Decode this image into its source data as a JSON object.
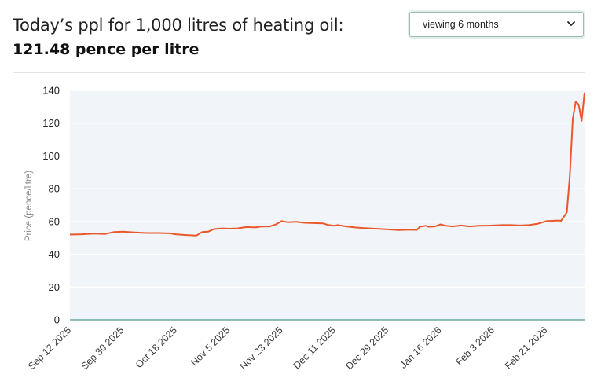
{
  "header": {
    "title_line1": "Today’s ppl for 1,000 litres of heating oil:",
    "title_line2": "121.48 pence per litre"
  },
  "period_select": {
    "selected": "viewing 6 months",
    "icon": "chevron-down-icon"
  },
  "colors": {
    "line": "#e9582a",
    "plot_bg": "#f1f4f8",
    "baseline": "#4a9a8c"
  },
  "chart_data": {
    "type": "line",
    "title": "",
    "xlabel": "",
    "ylabel": "Price (pence/litre)",
    "ylim": [
      0,
      140
    ],
    "yticks": [
      0,
      20,
      40,
      60,
      80,
      100,
      120,
      140
    ],
    "grid": true,
    "legend": "none",
    "x_tick_labels": [
      "Sep 12 2025",
      "Sep 30 2025",
      "Oct 18 2025",
      "Nov 5 2025",
      "Nov 23 2025",
      "Dec 11 2025",
      "Dec 29 2025",
      "Jan 16 2026",
      "Feb 3 2026",
      "Feb 21 2026"
    ],
    "series": [
      {
        "points": [
          [
            "2025-09-12",
            52.0
          ],
          [
            "2025-09-16",
            52.2
          ],
          [
            "2025-09-20",
            52.6
          ],
          [
            "2025-09-24",
            52.4
          ],
          [
            "2025-09-27",
            53.6
          ],
          [
            "2025-09-30",
            53.8
          ],
          [
            "2025-10-04",
            53.3
          ],
          [
            "2025-10-08",
            53.0
          ],
          [
            "2025-10-12",
            53.0
          ],
          [
            "2025-10-16",
            52.8
          ],
          [
            "2025-10-18",
            52.2
          ],
          [
            "2025-10-21",
            51.8
          ],
          [
            "2025-10-23",
            51.6
          ],
          [
            "2025-10-25",
            51.4
          ],
          [
            "2025-10-27",
            53.6
          ],
          [
            "2025-10-29",
            53.8
          ],
          [
            "2025-10-31",
            55.4
          ],
          [
            "2025-11-03",
            55.8
          ],
          [
            "2025-11-05",
            55.6
          ],
          [
            "2025-11-08",
            55.8
          ],
          [
            "2025-11-11",
            56.6
          ],
          [
            "2025-11-14",
            56.4
          ],
          [
            "2025-11-16",
            56.9
          ],
          [
            "2025-11-19",
            57.0
          ],
          [
            "2025-11-21",
            58.2
          ],
          [
            "2025-11-23",
            60.2
          ],
          [
            "2025-11-25",
            59.6
          ],
          [
            "2025-11-28",
            59.8
          ],
          [
            "2025-12-01",
            59.2
          ],
          [
            "2025-12-04",
            59.0
          ],
          [
            "2025-12-07",
            58.9
          ],
          [
            "2025-12-09",
            57.8
          ],
          [
            "2025-12-11",
            57.4
          ],
          [
            "2025-12-12",
            57.8
          ],
          [
            "2025-12-15",
            57.0
          ],
          [
            "2025-12-18",
            56.4
          ],
          [
            "2025-12-21",
            56.0
          ],
          [
            "2025-12-25",
            55.6
          ],
          [
            "2025-12-29",
            55.2
          ],
          [
            "2026-01-02",
            54.8
          ],
          [
            "2026-01-05",
            55.0
          ],
          [
            "2026-01-08",
            54.9
          ],
          [
            "2026-01-09",
            56.8
          ],
          [
            "2026-01-11",
            57.4
          ],
          [
            "2026-01-12",
            56.8
          ],
          [
            "2026-01-14",
            56.9
          ],
          [
            "2026-01-16",
            58.2
          ],
          [
            "2026-01-18",
            57.4
          ],
          [
            "2026-01-20",
            57.0
          ],
          [
            "2026-01-23",
            57.6
          ],
          [
            "2026-01-26",
            57.0
          ],
          [
            "2026-01-29",
            57.4
          ],
          [
            "2026-02-01",
            57.5
          ],
          [
            "2026-02-03",
            57.6
          ],
          [
            "2026-02-06",
            57.8
          ],
          [
            "2026-02-09",
            57.8
          ],
          [
            "2026-02-12",
            57.6
          ],
          [
            "2026-02-15",
            57.8
          ],
          [
            "2026-02-18",
            58.6
          ],
          [
            "2026-02-21",
            60.2
          ],
          [
            "2026-02-23",
            60.4
          ],
          [
            "2026-02-25",
            60.6
          ],
          [
            "2026-02-26",
            60.4
          ],
          [
            "2026-02-28",
            65.6
          ],
          [
            "2026-03-01",
            88.0
          ],
          [
            "2026-03-02",
            122.4
          ],
          [
            "2026-03-03",
            133.2
          ],
          [
            "2026-03-04",
            131.4
          ],
          [
            "2026-03-05",
            121.4
          ],
          [
            "2026-03-06",
            138.6
          ]
        ]
      }
    ]
  }
}
